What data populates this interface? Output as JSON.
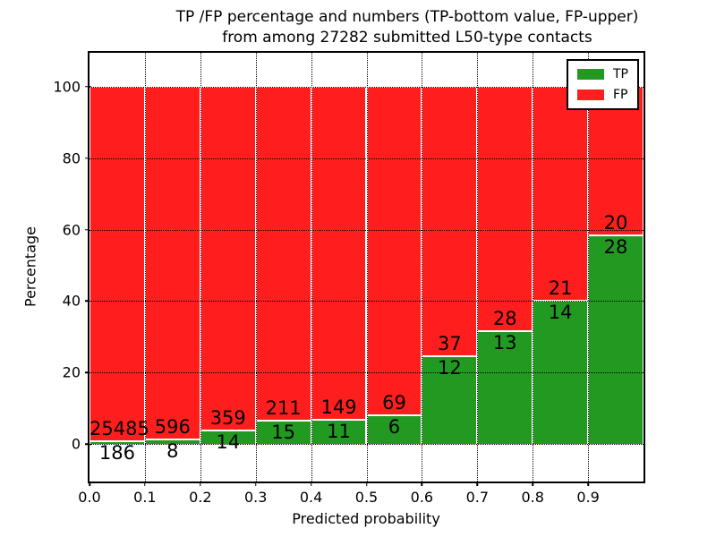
{
  "figure": {
    "title_line1": "TP /FP percentage and numbers (TP-bottom value, FP-upper)",
    "title_line2": "from among 27282 submitted L50-type contacts",
    "xlabel": "Predicted probability",
    "ylabel": "Percentage",
    "total_submitted": "27282"
  },
  "legend": {
    "position": "upper right",
    "entries": [
      {
        "label": "TP",
        "color": "#229a22"
      },
      {
        "label": "FP",
        "color": "#ff1e1e"
      }
    ]
  },
  "chart_data": {
    "type": "bar",
    "stacked": true,
    "title": "TP /FP percentage and numbers (TP-bottom value, FP-upper) from among 27282 submitted L50-type contacts",
    "xlabel": "Predicted probability",
    "ylabel": "Percentage",
    "bin_width": 0.1,
    "bin_starts": [
      0.0,
      0.1,
      0.2,
      0.3,
      0.4,
      0.5,
      0.6,
      0.7,
      0.8,
      0.9
    ],
    "x_tick_labels": [
      "0.0",
      "0.1",
      "0.2",
      "0.3",
      "0.4",
      "0.5",
      "0.6",
      "0.7",
      "0.8",
      "0.9"
    ],
    "y_tick_values": [
      0,
      20,
      40,
      60,
      80,
      100
    ],
    "ylim": [
      -10.5,
      109.5
    ],
    "grid": "dotted",
    "bar_edge_color": "#ffffff",
    "series": [
      {
        "name": "TP",
        "color": "#229a22",
        "counts": [
          186,
          8,
          14,
          15,
          11,
          6,
          12,
          13,
          14,
          28
        ]
      },
      {
        "name": "FP",
        "color": "#ff1e1e",
        "counts": [
          25485,
          596,
          359,
          211,
          149,
          69,
          37,
          28,
          21,
          20
        ]
      }
    ],
    "tp_percent_of_bin": [
      0.72,
      1.32,
      3.75,
      6.64,
      6.88,
      8.0,
      24.49,
      31.71,
      40.0,
      58.33
    ],
    "note": "green TP segment stacked below red FP segment; segments sum to 100% per bin"
  }
}
